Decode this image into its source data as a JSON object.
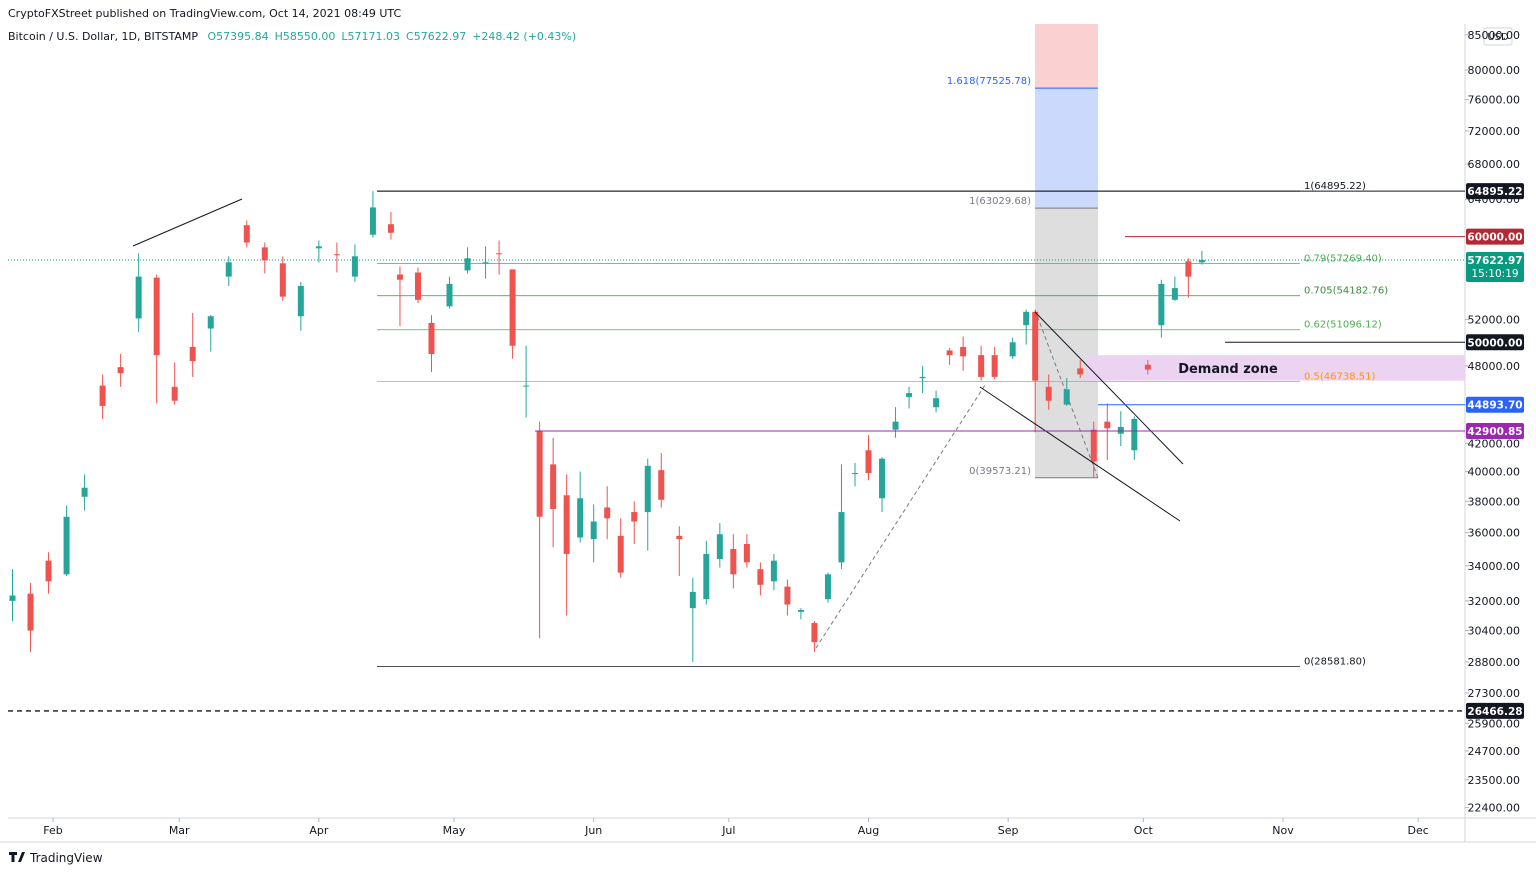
{
  "chart_data": {
    "type": "candlestick",
    "published": "CryptoFXStreet published on TradingView.com, Oct 14, 2021 08:49 UTC",
    "symbol": "Bitcoin / U.S. Dollar, 1D, BITSTAMP",
    "ohlc_header": [
      "O57395.84",
      "H58550.00",
      "L57171.03",
      "C57622.97",
      "+248.42 (+0.43%)"
    ],
    "currency": "USD",
    "footer": "TradingView",
    "log_scale": true,
    "up_color": "#26a69a",
    "down_color": "#ef5350",
    "xlim": [
      21,
      344.4
    ],
    "xticks": [
      {
        "value": 31,
        "label": "Feb"
      },
      {
        "value": 59,
        "label": "Mar"
      },
      {
        "value": 90,
        "label": "Apr"
      },
      {
        "value": 120,
        "label": "May"
      },
      {
        "value": 151,
        "label": "Jun"
      },
      {
        "value": 181,
        "label": "Jul"
      },
      {
        "value": 212,
        "label": "Aug"
      },
      {
        "value": 243,
        "label": "Sep"
      },
      {
        "value": 273,
        "label": "Oct"
      },
      {
        "value": 304,
        "label": "Nov"
      },
      {
        "value": 334,
        "label": "Dec"
      }
    ],
    "ylim": [
      22000,
      86600
    ],
    "yticks": [
      {
        "value": 85000,
        "label": "85000.00"
      },
      {
        "value": 80000,
        "label": "80000.00"
      },
      {
        "value": 76000,
        "label": "76000.00"
      },
      {
        "value": 72000,
        "label": "72000.00"
      },
      {
        "value": 68000,
        "label": "68000.00"
      },
      {
        "value": 64000,
        "label": "64000.00"
      },
      {
        "value": 52000,
        "label": "52000.00"
      },
      {
        "value": 48000,
        "label": "48000.00"
      },
      {
        "value": 42000,
        "label": "42000.00"
      },
      {
        "value": 40000,
        "label": "40000.00"
      },
      {
        "value": 38000,
        "label": "38000.00"
      },
      {
        "value": 36000,
        "label": "36000.00"
      },
      {
        "value": 34000,
        "label": "34000.00"
      },
      {
        "value": 32000,
        "label": "32000.00"
      },
      {
        "value": 30400,
        "label": "30400.00"
      },
      {
        "value": 28800,
        "label": "28800.00"
      },
      {
        "value": 27300,
        "label": "27300.00"
      },
      {
        "value": 25900,
        "label": "25900.00"
      },
      {
        "value": 24700,
        "label": "24700.00"
      },
      {
        "value": 23500,
        "label": "23500.00"
      },
      {
        "value": 22400,
        "label": "22400.00"
      }
    ],
    "x": [
      22,
      26,
      30,
      34,
      38,
      42,
      46,
      50,
      54,
      58,
      62,
      66,
      70,
      74,
      78,
      82,
      86,
      90,
      94,
      98,
      102,
      106,
      108,
      112,
      115,
      119,
      123,
      127,
      130,
      133,
      136,
      139,
      142,
      145,
      148,
      151,
      154,
      157,
      160,
      163,
      166,
      170,
      173,
      176,
      179,
      182,
      185,
      188,
      191,
      194,
      197,
      200,
      203,
      206,
      209,
      212,
      215,
      218,
      221,
      224,
      227,
      230,
      233,
      237,
      240,
      244,
      247,
      249,
      252,
      256,
      259,
      262,
      265,
      268,
      271,
      274,
      277,
      280,
      283,
      286
    ],
    "open": [
      32000,
      32400,
      34300,
      33500,
      38300,
      46400,
      47900,
      52100,
      55900,
      46300,
      49600,
      51200,
      56000,
      61200,
      58900,
      57300,
      52300,
      58800,
      58200,
      56000,
      60200,
      61300,
      56200,
      56400,
      51700,
      53200,
      56600,
      57400,
      58300,
      56700,
      46400,
      42900,
      40500,
      38400,
      35700,
      35600,
      37600,
      35800,
      37300,
      37300,
      40100,
      35800,
      31600,
      32100,
      34400,
      35000,
      35300,
      33800,
      33100,
      32800,
      31400,
      30800,
      32100,
      34200,
      39900,
      41500,
      38200,
      43000,
      45500,
      47000,
      44700,
      49300,
      49600,
      48900,
      48900,
      48800,
      51500,
      52700,
      46300,
      44900,
      47800,
      43000,
      43600,
      42700,
      41500,
      48100,
      51500,
      53800,
      57500,
      57395.84
    ],
    "high": [
      33800,
      33000,
      34800,
      37700,
      39800,
      47300,
      49000,
      58300,
      56200,
      48300,
      52600,
      52400,
      58000,
      61700,
      59400,
      58000,
      55500,
      59600,
      59400,
      59200,
      64895,
      62600,
      57000,
      56900,
      52400,
      56000,
      58900,
      59000,
      59600,
      56700,
      49700,
      43600,
      42400,
      39800,
      40000,
      37800,
      39000,
      36900,
      38000,
      40900,
      41300,
      36400,
      33300,
      35500,
      36600,
      35900,
      35900,
      34200,
      34700,
      33200,
      31600,
      30900,
      33600,
      40500,
      40600,
      42600,
      41000,
      44700,
      46300,
      48000,
      46000,
      49500,
      50500,
      49700,
      49600,
      50400,
      52900,
      52900,
      47300,
      47000,
      48500,
      43600,
      45000,
      44400,
      44000,
      48500,
      55700,
      56000,
      57800,
      58550
    ],
    "low": [
      30900,
      29300,
      32400,
      33400,
      37400,
      43800,
      46300,
      50900,
      45000,
      44900,
      47100,
      49200,
      55100,
      58900,
      56300,
      53700,
      51000,
      57400,
      56400,
      55500,
      59900,
      59700,
      51400,
      53500,
      47500,
      53000,
      56300,
      55800,
      56200,
      48600,
      43900,
      30000,
      35100,
      31200,
      35400,
      34200,
      35600,
      33300,
      35300,
      34900,
      37600,
      33400,
      28800,
      31800,
      33900,
      32700,
      33900,
      32300,
      32600,
      31200,
      31000,
      29300,
      31900,
      33800,
      39000,
      39400,
      37300,
      42400,
      44600,
      45800,
      44300,
      48100,
      47600,
      46800,
      46900,
      48600,
      49800,
      42800,
      44500,
      44800,
      47000,
      39600,
      40800,
      41800,
      40800,
      47300,
      50400,
      53700,
      54000,
      57171.03
    ],
    "close": [
      32300,
      30400,
      33100,
      37000,
      38900,
      44800,
      47400,
      56000,
      48900,
      45200,
      48400,
      52300,
      57400,
      59400,
      57600,
      54100,
      55100,
      59000,
      58100,
      58000,
      63100,
      60400,
      55700,
      53800,
      49000,
      55300,
      57800,
      57400,
      58200,
      49700,
      46400,
      37000,
      37500,
      34700,
      38200,
      36700,
      36900,
      33600,
      36700,
      40400,
      38100,
      35600,
      32500,
      34700,
      35900,
      33500,
      34200,
      32900,
      34300,
      31800,
      31500,
      29800,
      33500,
      37300,
      39900,
      39900,
      40900,
      43600,
      45800,
      47100,
      45400,
      48900,
      48800,
      47100,
      47100,
      50000,
      52700,
      46800,
      45200,
      46100,
      47300,
      40700,
      43100,
      43200,
      43800,
      47700,
      55300,
      54900,
      56000,
      57622.97
    ],
    "levels": [
      {
        "value": 64895.22,
        "color": "#131722",
        "style": "solid"
      },
      {
        "value": 60000,
        "label": "60000.00",
        "color": "#b22833",
        "style": "solid"
      },
      {
        "value": 57622.97,
        "color": "#089981",
        "style": "dotted",
        "countdown": "15:10:19"
      },
      {
        "value": 50000,
        "label": "50000.00",
        "color": "#131722",
        "style": "solid"
      },
      {
        "value": 44893.7,
        "label": "44893.70",
        "color": "#2962ff",
        "style": "solid"
      },
      {
        "value": 42900.85,
        "color": "#9c27b0",
        "style": "solid"
      },
      {
        "value": 26466.28,
        "color": "#131722",
        "style": "dashed"
      }
    ],
    "fib_retracement": [
      {
        "value": 64895.22,
        "label": "1(64895.22)",
        "color": "#131722"
      },
      {
        "value": 57269.4,
        "label": "0.79(57269.40)",
        "color": "#4caf50"
      },
      {
        "value": 54182.76,
        "label": "0.705(54182.76)",
        "color": "#388e3c"
      },
      {
        "value": 51096.12,
        "label": "0.62(51096.12)",
        "color": "#4caf50"
      },
      {
        "value": 46738.51,
        "label": "0.5(46738.51)",
        "color": "#ff9800"
      },
      {
        "value": 28581.8,
        "label": "0(28581.80)",
        "color": "#131722"
      }
    ],
    "fib_extension": [
      {
        "value": 77525.78,
        "label": "1.618(77525.78)",
        "color": "#2962ff",
        "fill": "#cbdafc"
      },
      {
        "value": 63029.68,
        "label": "1(63029.68)",
        "color": "#787b86",
        "fill": "#dedede"
      },
      {
        "value": 39573.21,
        "label": "0(39573.21)",
        "color": "#787b86",
        "fill": "#dedede"
      }
    ],
    "extension_top_fill": "#fbd0d0",
    "demand_zone": {
      "label": "Demand zone",
      "top": 48900,
      "bottom": 46800,
      "color": "#ecd3f2"
    }
  }
}
